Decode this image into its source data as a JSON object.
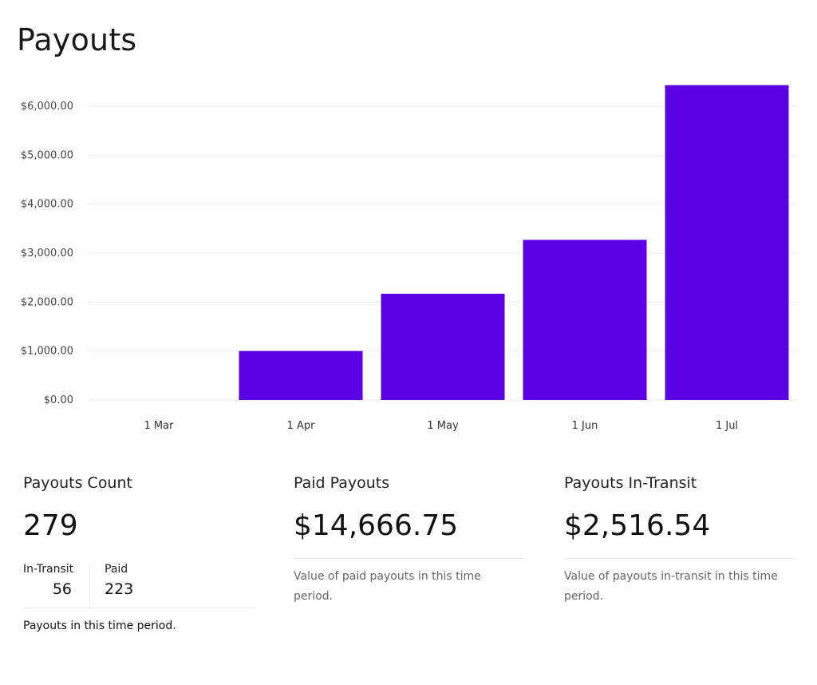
{
  "page": {
    "title": "Payouts"
  },
  "chart_data": {
    "type": "bar",
    "categories": [
      "1 Mar",
      "1 Apr",
      "1 May",
      "1 Jun",
      "1 Jul"
    ],
    "values": [
      0,
      1000,
      2170,
      3270,
      6430
    ],
    "y_ticks": [
      0,
      1000,
      2000,
      3000,
      4000,
      5000,
      6000
    ],
    "y_tick_labels": [
      "$0.00",
      "$1,000.00",
      "$2,000.00",
      "$3,000.00",
      "$4,000.00",
      "$5,000.00",
      "$6,000.00"
    ],
    "ylim": [
      0,
      6500
    ],
    "grid": true,
    "bar_color": "#5b00e3"
  },
  "stats": {
    "count": {
      "title": "Payouts Count",
      "value": "279",
      "in_transit_label": "In-Transit",
      "in_transit_value": "56",
      "paid_label": "Paid",
      "paid_value": "223",
      "description": "Payouts in this time period."
    },
    "paid": {
      "title": "Paid Payouts",
      "value": "$14,666.75",
      "description": "Value of paid payouts in this time period."
    },
    "in_transit": {
      "title": "Payouts In-Transit",
      "value": "$2,516.54",
      "description": "Value of payouts in-transit in this time period."
    }
  }
}
